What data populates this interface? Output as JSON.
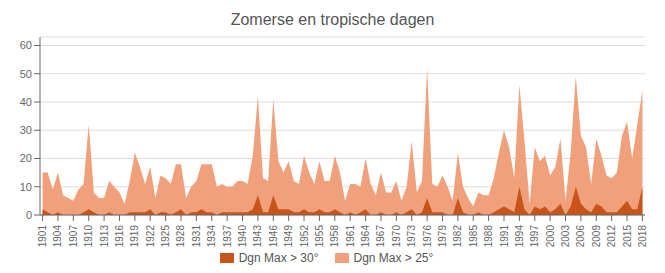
{
  "chart_data": {
    "type": "area",
    "title": "Zomerse en tropische dagen",
    "x": [
      1901,
      1902,
      1903,
      1904,
      1905,
      1906,
      1907,
      1908,
      1909,
      1910,
      1911,
      1912,
      1913,
      1914,
      1915,
      1916,
      1917,
      1918,
      1919,
      1920,
      1921,
      1922,
      1923,
      1924,
      1925,
      1926,
      1927,
      1928,
      1929,
      1930,
      1931,
      1932,
      1933,
      1934,
      1935,
      1936,
      1937,
      1938,
      1939,
      1940,
      1941,
      1942,
      1943,
      1944,
      1945,
      1946,
      1947,
      1948,
      1949,
      1950,
      1951,
      1952,
      1953,
      1954,
      1955,
      1956,
      1957,
      1958,
      1959,
      1960,
      1961,
      1962,
      1963,
      1964,
      1965,
      1966,
      1967,
      1968,
      1969,
      1970,
      1971,
      1972,
      1973,
      1974,
      1975,
      1976,
      1977,
      1978,
      1979,
      1980,
      1981,
      1982,
      1983,
      1984,
      1985,
      1986,
      1987,
      1988,
      1989,
      1990,
      1991,
      1992,
      1993,
      1994,
      1995,
      1996,
      1997,
      1998,
      1999,
      2000,
      2001,
      2002,
      2003,
      2004,
      2005,
      2006,
      2007,
      2008,
      2009,
      2010,
      2011,
      2012,
      2013,
      2014,
      2015,
      2016,
      2017,
      2018
    ],
    "series": [
      {
        "name": "Dgn Max > 30°",
        "color": "#c8541a",
        "values": [
          2,
          1,
          0,
          1,
          0,
          0,
          0,
          0,
          1,
          2,
          1,
          0,
          0,
          1,
          0,
          0,
          0,
          1,
          1,
          1,
          1,
          2,
          0,
          1,
          1,
          0,
          1,
          2,
          0,
          1,
          1,
          2,
          1,
          1,
          0,
          1,
          1,
          1,
          1,
          1,
          1,
          2,
          7,
          1,
          1,
          7,
          2,
          2,
          2,
          1,
          1,
          2,
          1,
          1,
          2,
          1,
          1,
          2,
          1,
          0,
          1,
          0,
          1,
          2,
          0,
          0,
          1,
          0,
          0,
          1,
          0,
          1,
          2,
          0,
          1,
          6,
          1,
          1,
          1,
          0,
          0,
          6,
          1,
          0,
          0,
          1,
          0,
          0,
          1,
          2,
          3,
          2,
          1,
          10,
          2,
          0,
          3,
          2,
          3,
          1,
          2,
          4,
          0,
          3,
          10,
          4,
          2,
          1,
          4,
          3,
          1,
          1,
          1,
          3,
          5,
          2,
          2,
          10
        ]
      },
      {
        "name": "Dgn Max > 25°",
        "color": "#f0a07a",
        "values": [
          15,
          15,
          9,
          15,
          7,
          6,
          5,
          9,
          11,
          32,
          8,
          6,
          6,
          12,
          10,
          8,
          4,
          12,
          22,
          17,
          11,
          17,
          6,
          14,
          13,
          11,
          18,
          18,
          6,
          10,
          12,
          18,
          18,
          18,
          10,
          11,
          10,
          10,
          12,
          12,
          11,
          21,
          42,
          13,
          12,
          41,
          19,
          15,
          19,
          12,
          11,
          21,
          15,
          11,
          19,
          12,
          12,
          21,
          15,
          5,
          11,
          11,
          10,
          20,
          11,
          7,
          15,
          8,
          8,
          12,
          5,
          10,
          26,
          8,
          12,
          52,
          11,
          10,
          14,
          10,
          5,
          22,
          10,
          6,
          3,
          8,
          7,
          7,
          13,
          22,
          30,
          24,
          13,
          46,
          26,
          4,
          24,
          19,
          21,
          14,
          17,
          27,
          5,
          22,
          49,
          28,
          24,
          11,
          27,
          21,
          14,
          13,
          15,
          28,
          33,
          20,
          32,
          44
        ]
      }
    ],
    "xlim": [
      1900.5,
      2018.5
    ],
    "xticks": [
      1901,
      1904,
      1907,
      1910,
      1913,
      1916,
      1919,
      1922,
      1925,
      1928,
      1931,
      1934,
      1937,
      1940,
      1943,
      1946,
      1949,
      1952,
      1955,
      1958,
      1961,
      1964,
      1967,
      1970,
      1973,
      1976,
      1979,
      1982,
      1985,
      1988,
      1991,
      1994,
      1997,
      2000,
      2003,
      2006,
      2009,
      2012,
      2015,
      2018
    ],
    "ylim": [
      0,
      63
    ],
    "yticks": [
      0,
      10,
      20,
      30,
      40,
      50,
      60
    ],
    "grid": true,
    "legend": "bottom"
  }
}
